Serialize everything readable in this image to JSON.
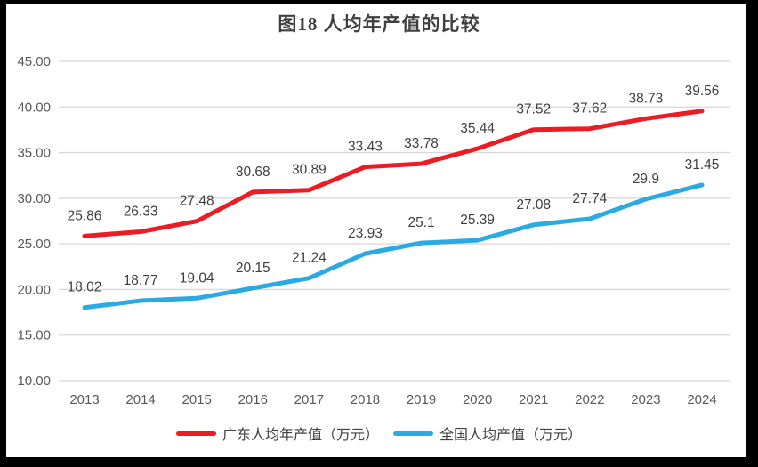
{
  "chart_data": {
    "type": "line",
    "title": "图18 人均年产值的比较",
    "categories": [
      "2013",
      "2014",
      "2015",
      "2016",
      "2017",
      "2018",
      "2019",
      "2020",
      "2021",
      "2022",
      "2023",
      "2024"
    ],
    "series": [
      {
        "name": "广东人均年产值（万元）",
        "color": "#ec1c24",
        "values": [
          25.86,
          26.33,
          27.48,
          30.68,
          30.89,
          33.43,
          33.78,
          35.44,
          37.52,
          37.62,
          38.73,
          39.56
        ],
        "point_labels": [
          "25.86",
          "26.33",
          "27.48",
          "30.68",
          "30.89",
          "33.43",
          "33.78",
          "35.44",
          "37.52",
          "37.62",
          "38.73",
          "39.56"
        ]
      },
      {
        "name": "全国人均产值（万元）",
        "color": "#2baae2",
        "values": [
          18.02,
          18.77,
          19.04,
          20.15,
          21.24,
          23.93,
          25.1,
          25.39,
          27.08,
          27.74,
          29.9,
          31.45
        ],
        "point_labels": [
          "18.02",
          "18.77",
          "19.04",
          "20.15",
          "21.24",
          "23.93",
          "25.1",
          "25.39",
          "27.08",
          "27.74",
          "29.9",
          "31.45"
        ]
      }
    ],
    "y_axis": {
      "min": 10,
      "max": 45,
      "step": 5,
      "tick_labels": [
        "45.00",
        "40.00",
        "35.00",
        "30.00",
        "25.00",
        "20.00",
        "15.00",
        "10.00"
      ]
    },
    "grid": true,
    "grid_color": "#d8d8d8",
    "tick_label_color": "#595959",
    "data_label_color": "#3f3f3f",
    "legend_position": "bottom",
    "frame_border_color": "#000000"
  }
}
